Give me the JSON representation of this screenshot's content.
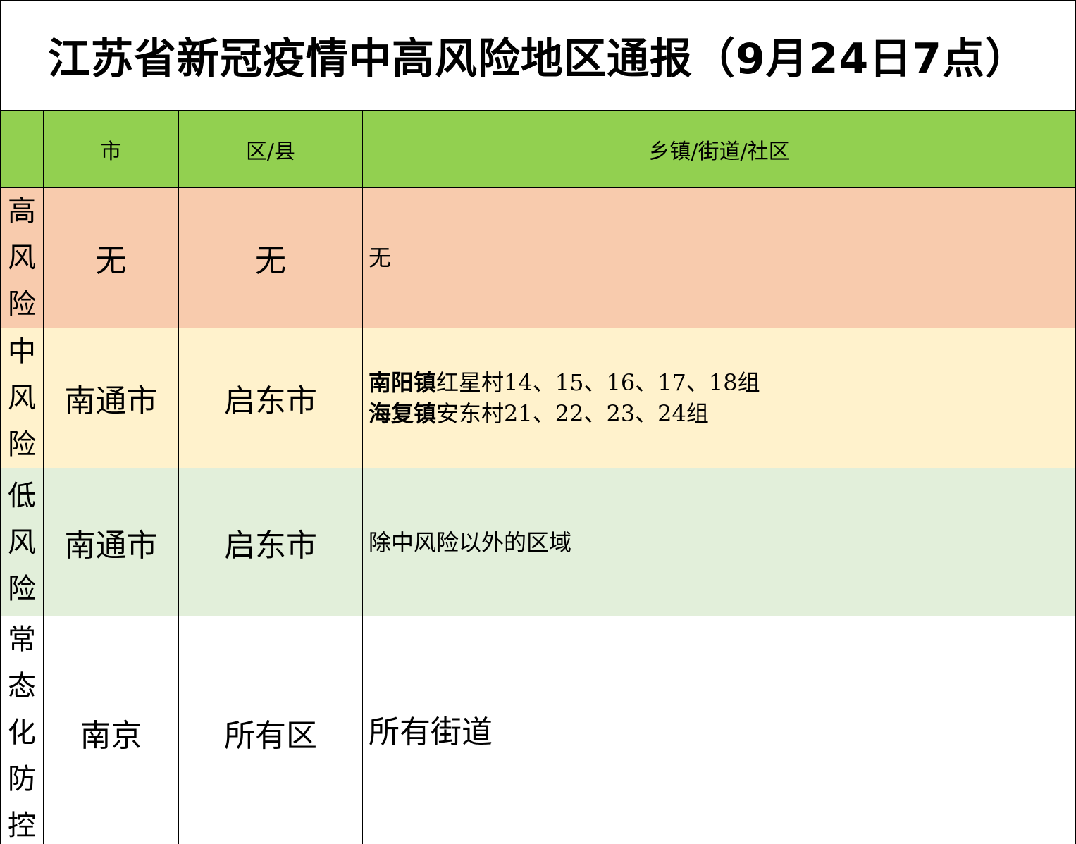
{
  "title": "江苏省新冠疫情中高风险地区通报（9月24日7点）",
  "header": {
    "level": "",
    "city": "市",
    "district": "区/县",
    "area": "乡镇/街道/社区"
  },
  "colors": {
    "header": "#92d050",
    "high": "#f8cbad",
    "medium": "#fff2cc",
    "low": "#e2efda",
    "normal": "#ffffff"
  },
  "rows": [
    {
      "level": "高风险",
      "city": "无",
      "district": "无",
      "area": "无"
    },
    {
      "level": "中风险",
      "city": "南通市",
      "district": "启东市",
      "areas": [
        {
          "town": "南阳镇",
          "detail": "红星村14、15、16、17、18组"
        },
        {
          "town": "海复镇",
          "detail": "安东村21、22、23、24组"
        }
      ]
    },
    {
      "level": "低风险",
      "city": "南通市",
      "district": "启东市",
      "area": "除中风险以外的区域"
    },
    {
      "level": "常态化防控",
      "city": "南京",
      "district": "所有区",
      "area": "所有街道"
    }
  ]
}
